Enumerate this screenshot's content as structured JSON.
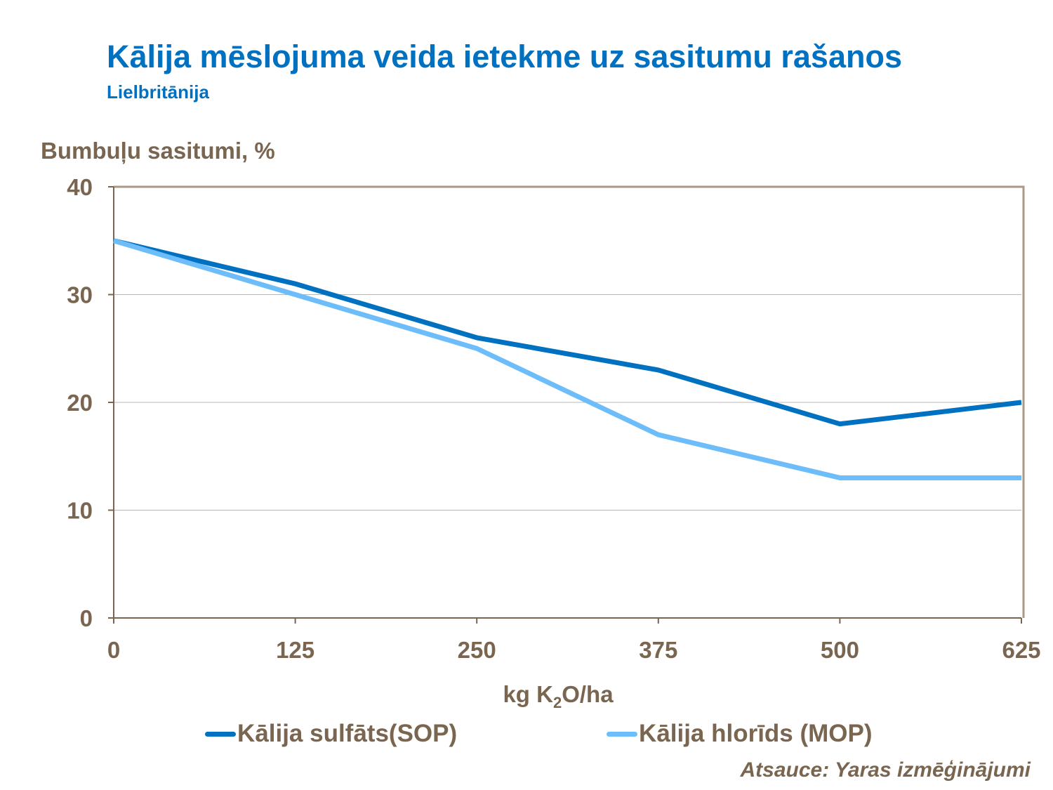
{
  "chart_data": {
    "type": "line",
    "title": "Kālija mēslojuma veida ietekme uz sasitumu rašanos",
    "subtitle": "Lielbritānija",
    "ylabel": "Bumbuļu sasitumi, %",
    "xlabel": {
      "before": "kg K",
      "sub": "2",
      "after": "O/ha"
    },
    "x": [
      0,
      125,
      250,
      375,
      500,
      625
    ],
    "x_tick_labels": [
      "0",
      "125",
      "250",
      "375",
      "500",
      "625"
    ],
    "y_tick_labels": [
      "0",
      "10",
      "20",
      "30",
      "40"
    ],
    "y_ticks": [
      0,
      10,
      20,
      30,
      40
    ],
    "xlim": [
      0,
      625
    ],
    "ylim": [
      0,
      40
    ],
    "grid": "horizontal",
    "legend_position": "bottom",
    "series": [
      {
        "name": "Kālija sulfāts(SOP)",
        "color": "#0070c0",
        "values": [
          35,
          31,
          26,
          23,
          18,
          20
        ]
      },
      {
        "name": "Kālija hlorīds (MOP)",
        "color": "#6cbdf9",
        "values": [
          35,
          30,
          25,
          17,
          13,
          13
        ]
      }
    ],
    "source": "Atsauce: Yaras izmēģinājumi"
  }
}
